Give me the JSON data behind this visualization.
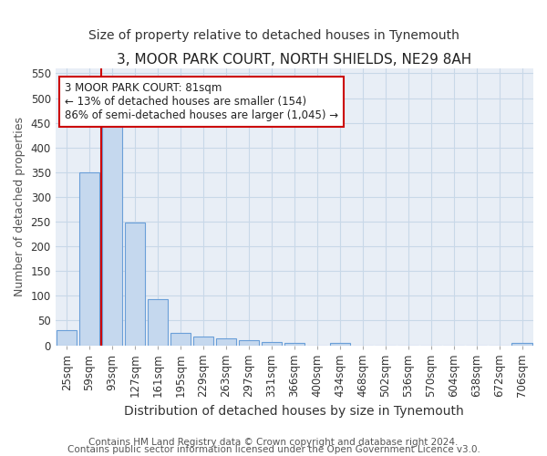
{
  "title": "3, MOOR PARK COURT, NORTH SHIELDS, NE29 8AH",
  "subtitle": "Size of property relative to detached houses in Tynemouth",
  "xlabel": "Distribution of detached houses by size in Tynemouth",
  "ylabel": "Number of detached properties",
  "categories": [
    "25sqm",
    "59sqm",
    "93sqm",
    "127sqm",
    "161sqm",
    "195sqm",
    "229sqm",
    "263sqm",
    "297sqm",
    "331sqm",
    "366sqm",
    "400sqm",
    "434sqm",
    "468sqm",
    "502sqm",
    "536sqm",
    "570sqm",
    "604sqm",
    "638sqm",
    "672sqm",
    "706sqm"
  ],
  "values": [
    30,
    350,
    445,
    248,
    93,
    25,
    17,
    14,
    11,
    7,
    5,
    0,
    4,
    0,
    0,
    0,
    0,
    0,
    0,
    0,
    4
  ],
  "bar_color": "#c5d8ee",
  "bar_edge_color": "#6a9fd8",
  "grid_color": "#c8d8e8",
  "background_color": "#e8eef6",
  "annotation_text": "3 MOOR PARK COURT: 81sqm\n← 13% of detached houses are smaller (154)\n86% of semi-detached houses are larger (1,045) →",
  "annotation_box_edge": "#cc0000",
  "vline_color": "#cc0000",
  "ylim": [
    0,
    560
  ],
  "yticks": [
    0,
    50,
    100,
    150,
    200,
    250,
    300,
    350,
    400,
    450,
    500,
    550
  ],
  "footer_line1": "Contains HM Land Registry data © Crown copyright and database right 2024.",
  "footer_line2": "Contains public sector information licensed under the Open Government Licence v3.0.",
  "title_fontsize": 11,
  "subtitle_fontsize": 10,
  "xlabel_fontsize": 10,
  "ylabel_fontsize": 9,
  "tick_fontsize": 8.5,
  "footer_fontsize": 7.5
}
